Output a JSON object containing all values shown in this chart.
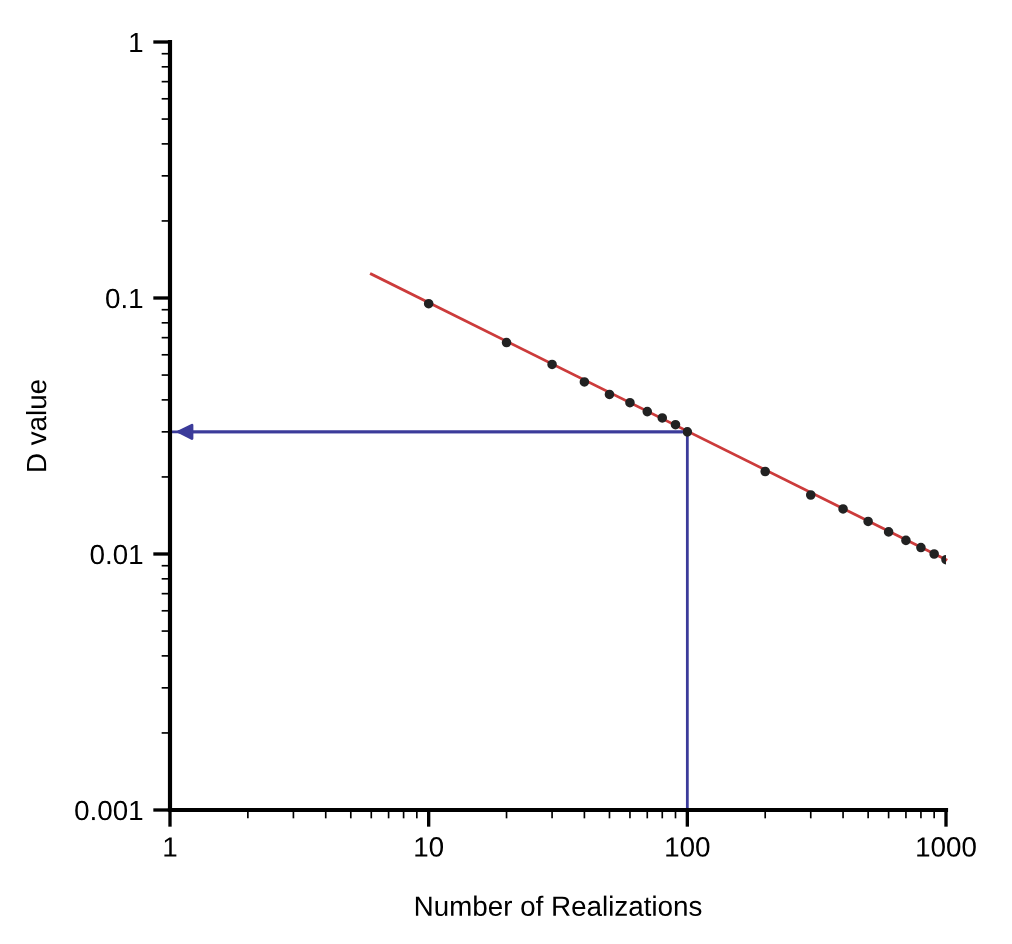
{
  "chart_data": {
    "type": "scatter",
    "xlabel": "Number of Realizations",
    "ylabel": "D value",
    "log": "xy",
    "xlim": [
      1,
      1000
    ],
    "ylim": [
      0.001,
      1
    ],
    "xticks": [
      1,
      10,
      100,
      1000
    ],
    "yticks": [
      0.001,
      0.01,
      0.1,
      1
    ],
    "grid": false,
    "legend": false,
    "series": [
      {
        "type": "line",
        "color": "#cc3b3b",
        "marker": "none",
        "x": [
          6,
          1000
        ],
        "values": [
          0.124,
          0.0095
        ]
      },
      {
        "color": "#222222",
        "marker": "circle",
        "x": [
          10,
          20,
          30,
          40,
          50,
          60,
          70,
          80,
          90,
          100,
          200,
          300,
          400,
          500,
          600,
          700,
          800,
          900,
          1000
        ],
        "values": [
          0.095,
          0.067,
          0.055,
          0.047,
          0.042,
          0.039,
          0.036,
          0.034,
          0.032,
          0.03,
          0.021,
          0.017,
          0.015,
          0.0134,
          0.0122,
          0.0113,
          0.0106,
          0.01,
          0.0095
        ]
      },
      {
        "type": "line",
        "color": "#3b3b9a",
        "marker": "none",
        "x": [
          100,
          100,
          1
        ],
        "values": [
          0.001,
          0.03,
          0.03
        ]
      }
    ]
  }
}
